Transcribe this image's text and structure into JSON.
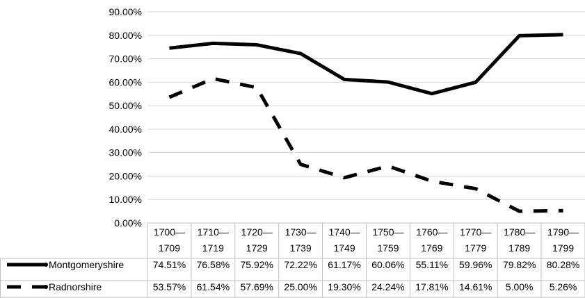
{
  "chart_data": {
    "type": "line",
    "categories": [
      [
        "1700—",
        "1709"
      ],
      [
        "1710—",
        "1719"
      ],
      [
        "1720—",
        "1729"
      ],
      [
        "1730—",
        "1739"
      ],
      [
        "1740—",
        "1749"
      ],
      [
        "1750—",
        "1759"
      ],
      [
        "1760—",
        "1769"
      ],
      [
        "1770—",
        "1779"
      ],
      [
        "1780—",
        "1789"
      ],
      [
        "1790—",
        "1799"
      ]
    ],
    "series": [
      {
        "name": "Montgomeryshire",
        "style": "solid",
        "color": "#000000",
        "values": [
          74.51,
          76.58,
          75.92,
          72.22,
          61.17,
          60.06,
          55.11,
          59.96,
          79.82,
          80.28
        ],
        "labels": [
          "74.51%",
          "76.58%",
          "75.92%",
          "72.22%",
          "61.17%",
          "60.06%",
          "55.11%",
          "59.96%",
          "79.82%",
          "80.28%"
        ]
      },
      {
        "name": "Radnorshire",
        "style": "dashed",
        "color": "#000000",
        "values": [
          53.57,
          61.54,
          57.69,
          25.0,
          19.3,
          24.24,
          17.81,
          14.61,
          5.0,
          5.26
        ],
        "labels": [
          "53.57%",
          "61.54%",
          "57.69%",
          "25.00%",
          "19.30%",
          "24.24%",
          "17.81%",
          "14.61%",
          "5.00%",
          "5.26%"
        ]
      }
    ],
    "yticks": [
      "0.00%",
      "10.00%",
      "20.00%",
      "30.00%",
      "40.00%",
      "50.00%",
      "60.00%",
      "70.00%",
      "80.00%",
      "90.00%"
    ],
    "ylim": [
      0,
      90
    ],
    "grid": "horizontal",
    "legend": "data-table",
    "title": "",
    "xlabel": "",
    "ylabel": ""
  }
}
